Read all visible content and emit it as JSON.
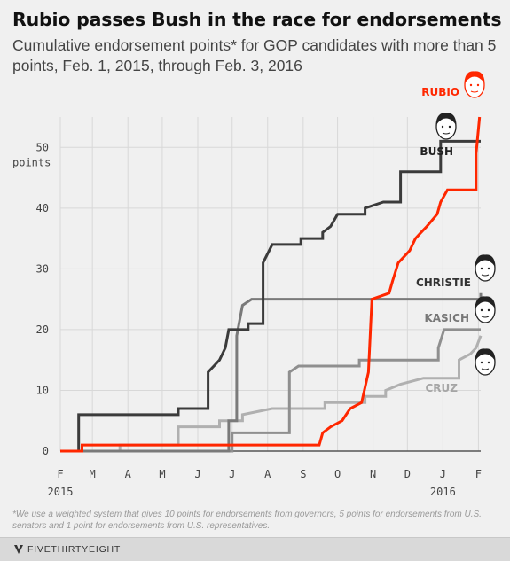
{
  "title": "Rubio passes Bush in the race for endorsements",
  "subtitle": "Cumulative endorsement points* for GOP candidates with more than 5 points, Feb. 1, 2015, through Feb. 3, 2016",
  "footnote": "*We use a weighted system that gives 10 points for endorsements from governors, 5 points for endorsements from U.S. senators and 1 point for endorsements from U.S. representatives.",
  "brand": "FIVETHIRTYEIGHT",
  "colors": {
    "rubio": "#ff2700",
    "bush": "#3b3b3b",
    "christie": "#7a7a7a",
    "kasich": "#8f8f8f",
    "cruz": "#b0b0b0",
    "background": "#f0f0f0"
  },
  "icons": [
    "candidate-portrait-icon",
    "fivethirtyeight-logo-icon"
  ],
  "chart_data": {
    "type": "line",
    "step": true,
    "ylabel": "points",
    "ylim": [
      0,
      55
    ],
    "yticks": [
      0,
      10,
      20,
      30,
      40,
      50
    ],
    "x_ticks": [
      "F",
      "M",
      "A",
      "M",
      "J",
      "J",
      "A",
      "S",
      "O",
      "N",
      "D",
      "J",
      "F"
    ],
    "year_labels": [
      "2015",
      "2016"
    ],
    "grid": true,
    "series": [
      {
        "name": "RUBIO",
        "color": "#ff2700",
        "points": [
          [
            "2015-02-01",
            0
          ],
          [
            "2015-02-20",
            0
          ],
          [
            "2015-02-20",
            1
          ],
          [
            "2015-09-15",
            1
          ],
          [
            "2015-09-18",
            3
          ],
          [
            "2015-09-25",
            4
          ],
          [
            "2015-10-05",
            5
          ],
          [
            "2015-10-12",
            7
          ],
          [
            "2015-10-22",
            8
          ],
          [
            "2015-10-28",
            13
          ],
          [
            "2015-10-31",
            25
          ],
          [
            "2015-11-15",
            26
          ],
          [
            "2015-11-18",
            28
          ],
          [
            "2015-11-23",
            31
          ],
          [
            "2015-11-28",
            32
          ],
          [
            "2015-12-03",
            33
          ],
          [
            "2015-12-08",
            35
          ],
          [
            "2015-12-13",
            36
          ],
          [
            "2015-12-18",
            37
          ],
          [
            "2015-12-27",
            39
          ],
          [
            "2015-12-30",
            41
          ],
          [
            "2016-01-05",
            43
          ],
          [
            "2016-01-30",
            43
          ],
          [
            "2016-01-30",
            49
          ],
          [
            "2016-02-02",
            55
          ]
        ]
      },
      {
        "name": "BUSH",
        "color": "#3b3b3b",
        "points": [
          [
            "2015-02-01",
            0
          ],
          [
            "2015-02-17",
            0
          ],
          [
            "2015-02-17",
            6
          ],
          [
            "2015-05-15",
            6
          ],
          [
            "2015-05-15",
            7
          ],
          [
            "2015-06-10",
            7
          ],
          [
            "2015-06-10",
            13
          ],
          [
            "2015-06-15",
            14
          ],
          [
            "2015-06-20",
            15
          ],
          [
            "2015-06-25",
            17
          ],
          [
            "2015-06-28",
            20
          ],
          [
            "2015-07-15",
            20
          ],
          [
            "2015-07-15",
            21
          ],
          [
            "2015-07-28",
            21
          ],
          [
            "2015-07-28",
            31
          ],
          [
            "2015-08-05",
            34
          ],
          [
            "2015-08-30",
            34
          ],
          [
            "2015-08-30",
            35
          ],
          [
            "2015-09-18",
            35
          ],
          [
            "2015-09-18",
            36
          ],
          [
            "2015-09-25",
            37
          ],
          [
            "2015-10-01",
            39
          ],
          [
            "2015-10-25",
            39
          ],
          [
            "2015-10-25",
            40
          ],
          [
            "2015-11-10",
            41
          ],
          [
            "2015-11-25",
            41
          ],
          [
            "2015-11-25",
            46
          ],
          [
            "2015-12-30",
            46
          ],
          [
            "2015-12-30",
            51
          ],
          [
            "2016-02-03",
            51
          ]
        ]
      },
      {
        "name": "CHRISTIE",
        "color": "#7a7a7a",
        "points": [
          [
            "2015-02-01",
            0
          ],
          [
            "2015-06-28",
            0
          ],
          [
            "2015-06-28",
            5
          ],
          [
            "2015-07-05",
            5
          ],
          [
            "2015-07-05",
            19
          ],
          [
            "2015-07-10",
            24
          ],
          [
            "2015-07-18",
            25
          ],
          [
            "2016-02-03",
            25
          ],
          [
            "2016-02-03",
            26
          ]
        ]
      },
      {
        "name": "KASICH",
        "color": "#8f8f8f",
        "points": [
          [
            "2015-02-01",
            0
          ],
          [
            "2015-07-01",
            0
          ],
          [
            "2015-07-01",
            3
          ],
          [
            "2015-08-20",
            3
          ],
          [
            "2015-08-20",
            13
          ],
          [
            "2015-08-28",
            14
          ],
          [
            "2015-10-20",
            14
          ],
          [
            "2015-10-20",
            15
          ],
          [
            "2015-12-28",
            15
          ],
          [
            "2015-12-28",
            17
          ],
          [
            "2016-01-02",
            20
          ],
          [
            "2016-02-03",
            20
          ]
        ]
      },
      {
        "name": "CRUZ",
        "color": "#b0b0b0",
        "points": [
          [
            "2015-02-01",
            0
          ],
          [
            "2015-03-25",
            0
          ],
          [
            "2015-03-25",
            1
          ],
          [
            "2015-05-15",
            1
          ],
          [
            "2015-05-15",
            4
          ],
          [
            "2015-06-20",
            4
          ],
          [
            "2015-06-20",
            5
          ],
          [
            "2015-07-10",
            5
          ],
          [
            "2015-07-10",
            6
          ],
          [
            "2015-08-05",
            7
          ],
          [
            "2015-09-20",
            7
          ],
          [
            "2015-09-20",
            8
          ],
          [
            "2015-10-25",
            8
          ],
          [
            "2015-10-25",
            9
          ],
          [
            "2015-11-12",
            9
          ],
          [
            "2015-11-12",
            10
          ],
          [
            "2015-11-25",
            11
          ],
          [
            "2015-12-15",
            12
          ],
          [
            "2016-01-15",
            12
          ],
          [
            "2016-01-15",
            15
          ],
          [
            "2016-01-25",
            16
          ],
          [
            "2016-01-30",
            17
          ],
          [
            "2016-02-03",
            19
          ]
        ]
      }
    ]
  }
}
